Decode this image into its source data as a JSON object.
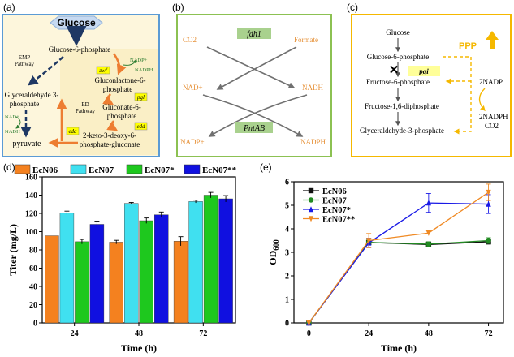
{
  "panel_a": {
    "label": "(a)",
    "glucose": "Glucose",
    "g6p": "Glucose-6-phosphate",
    "emp_line1": "EMP",
    "emp_line2": "Pathway",
    "nadp_plus": "NADP+",
    "nadph": "NADPH",
    "zwf": "zwf",
    "gluconolactone_line1": "Gluconlactone-6-",
    "gluconolactone_line2": "phosphate",
    "ed_line1": "ED",
    "ed_line2": "Pathway",
    "pgl": "pgl",
    "gluconate_line1": "Gluconate-6-",
    "gluconate_line2": "phosphate",
    "edd": "edd",
    "eda": "eda",
    "g3p_line1": "Glyceraldehyde 3-",
    "g3p_line2": "phosphate",
    "nad_plus": "NAD+",
    "nadh": "NADH",
    "kdpg_line1": "2-keto-3-deoxy-6-",
    "kdpg_line2": "phosphate-gluconate",
    "pyruvate": "pyruvate",
    "colors": {
      "border": "#5b9bd5",
      "fill": "#fdf6dc",
      "hex": "#c6d9f1",
      "orange": "#ed7d31",
      "navy": "#1f3864",
      "green": "#2e7d32",
      "gene": "#ffff00"
    }
  },
  "panel_b": {
    "label": "(b)",
    "co2": "CO2",
    "fdh1": "fdh1",
    "formate": "Formate",
    "nad_plus": "NAD+",
    "nadh": "NADH",
    "nadp_plus": "NADP+",
    "pntab": "PntAB",
    "nadph": "NADPH",
    "colors": {
      "border": "#8cc152",
      "gene_fill": "#a9d18e",
      "text": "#e69138"
    }
  },
  "panel_c": {
    "label": "(c)",
    "glucose": "Glucose",
    "g6p": "Glucose-6-phosphate",
    "ppp": "PPP",
    "pgi": "pgi",
    "f6p": "Fructose-6-phosphate",
    "two_nadp": "2NADP",
    "f16dp": "Fructose-1,6-diphosphate",
    "two_nadph": "2NADPH",
    "co2": "CO2",
    "g3p": "Glyceraldehyde-3-phosphate",
    "colors": {
      "border": "#f5b800",
      "gene_fill": "#ffff99",
      "ppp": "#f5b800"
    }
  },
  "panel_d": {
    "label": "(d)",
    "chart_data": {
      "type": "bar",
      "categories": [
        "24",
        "48",
        "72"
      ],
      "series": [
        {
          "name": "EcN06",
          "values": [
            95.5,
            88.5,
            89.5
          ],
          "errors": [
            0,
            2,
            5
          ],
          "color": "#f4811f"
        },
        {
          "name": "EcN07",
          "values": [
            120.5,
            131,
            133
          ],
          "errors": [
            2,
            1,
            1.5
          ],
          "color": "#40e0f0"
        },
        {
          "name": "EcN07*",
          "values": [
            89,
            112,
            140
          ],
          "errors": [
            2.5,
            3,
            3
          ],
          "color": "#1ec81e"
        },
        {
          "name": "EcN07**",
          "values": [
            108,
            118.5,
            136
          ],
          "errors": [
            3.5,
            3,
            3.5
          ],
          "color": "#1010e0"
        }
      ],
      "xlabel": "Time (h)",
      "ylabel": "Titer (mg/L)",
      "ylim": [
        0,
        160
      ],
      "yticks": [
        0,
        20,
        40,
        60,
        80,
        100,
        120,
        140,
        160
      ],
      "legend": "top"
    }
  },
  "panel_e": {
    "label": "(e)",
    "chart_data": {
      "type": "line",
      "x": [
        0,
        24,
        48,
        72
      ],
      "series": [
        {
          "name": "EcN06",
          "values": [
            0,
            3.42,
            3.33,
            3.45
          ],
          "errors": [
            0,
            0.1,
            0.1,
            0.1
          ],
          "color": "#111111",
          "marker": "square"
        },
        {
          "name": "EcN07",
          "values": [
            0,
            3.42,
            3.35,
            3.5
          ],
          "errors": [
            0,
            0.1,
            0.1,
            0.12
          ],
          "color": "#228b22",
          "marker": "circle"
        },
        {
          "name": "EcN07*",
          "values": [
            0,
            3.4,
            5.1,
            5.05
          ],
          "errors": [
            0,
            0.2,
            0.4,
            0.4
          ],
          "color": "#1a1ae6",
          "marker": "triangle-up"
        },
        {
          "name": "EcN07**",
          "values": [
            0,
            3.5,
            3.82,
            5.55
          ],
          "errors": [
            0,
            0.3,
            0,
            0.35
          ],
          "color": "#f08a24",
          "marker": "triangle-down"
        }
      ],
      "xlabel": "Time (h)",
      "ylabel_main": "OD",
      "ylabel_sub": "600",
      "xlim": [
        -6,
        78
      ],
      "xticks": [
        0,
        24,
        48,
        72
      ],
      "ylim": [
        0,
        6
      ],
      "yticks": [
        0,
        1,
        2,
        3,
        4,
        5,
        6
      ],
      "legend": "top-left"
    }
  }
}
